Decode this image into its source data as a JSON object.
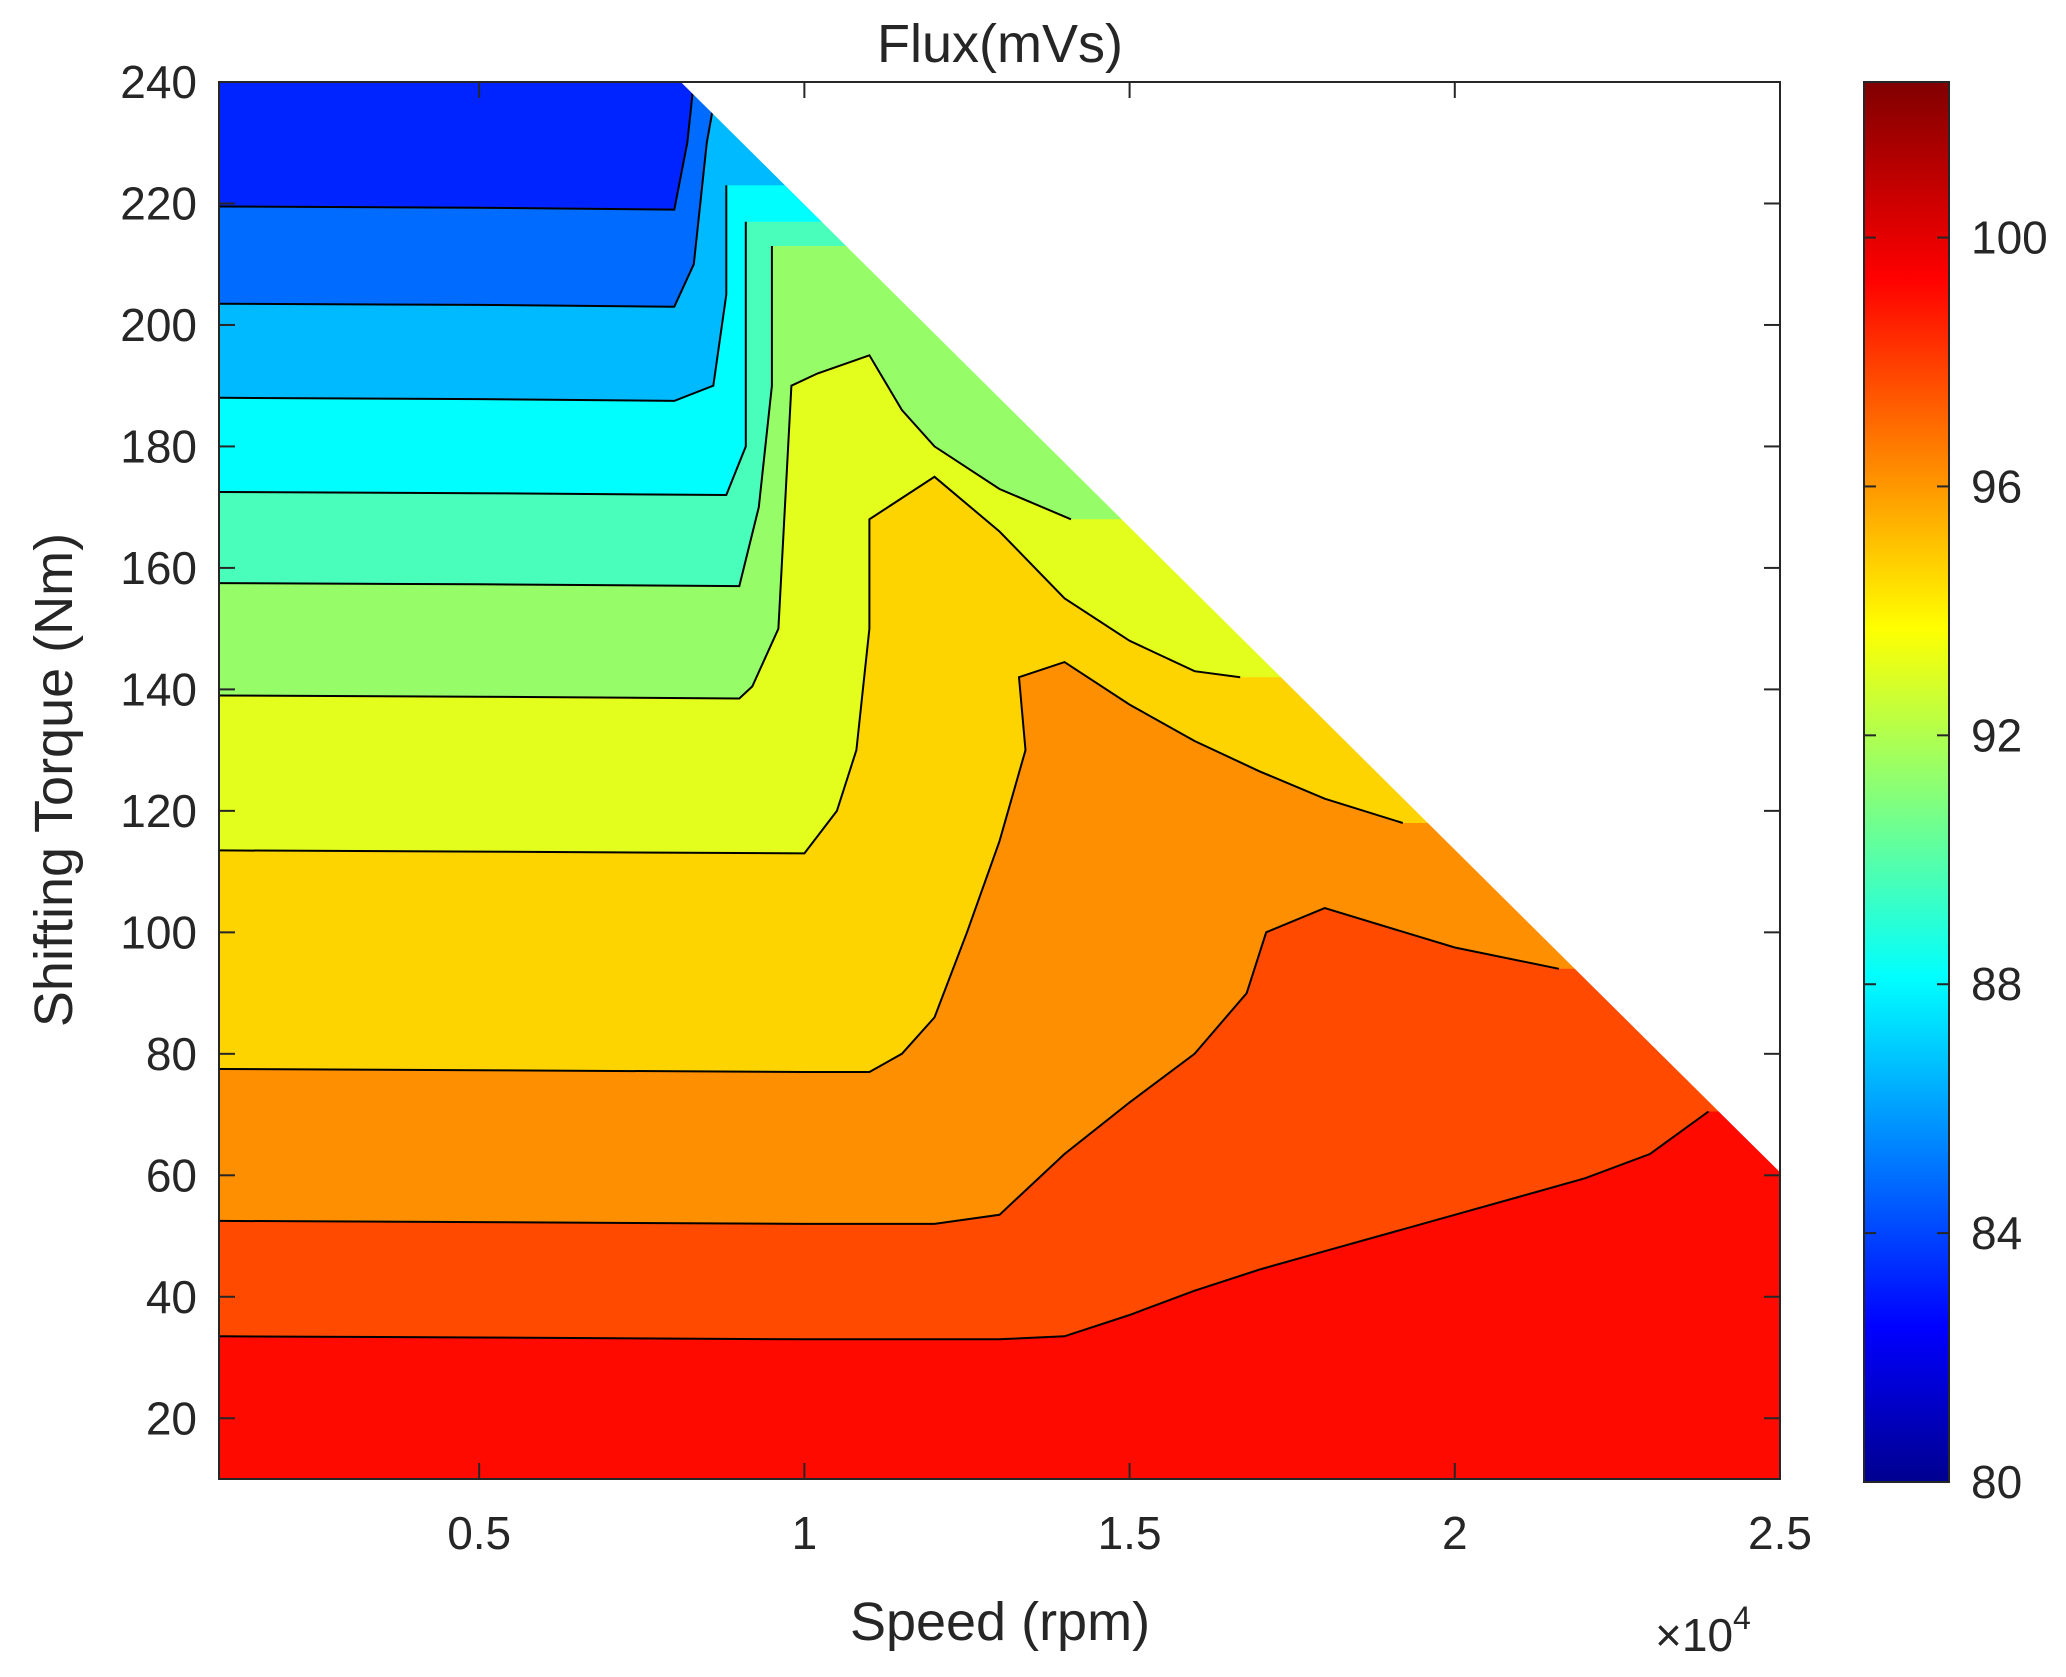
{
  "chart_data": {
    "type": "filled-contour",
    "title": "Flux(mVs)",
    "xlabel": "Speed (rpm)",
    "ylabel": "Shifting Torque (Nm)",
    "x_exponent_label": "×10",
    "x_exponent_power": "4",
    "xlim": [
      0.1,
      2.5
    ],
    "ylim": [
      10,
      240
    ],
    "xticks": [
      0.5,
      1,
      1.5,
      2,
      2.5
    ],
    "xtick_labels": [
      "0.5",
      "1",
      "1.5",
      "2",
      "2.5"
    ],
    "yticks": [
      20,
      40,
      60,
      80,
      100,
      120,
      140,
      160,
      180,
      200,
      220,
      240
    ],
    "ytick_labels": [
      "20",
      "40",
      "60",
      "80",
      "100",
      "120",
      "140",
      "160",
      "180",
      "200",
      "220",
      "240"
    ],
    "x_units_note": "speed in units of 10^4 rpm",
    "colormap": "jet",
    "clim": [
      80,
      102.5
    ],
    "colorbar_ticks": [
      80,
      84,
      88,
      92,
      96,
      100
    ],
    "colorbar_tick_labels": [
      "80",
      "84",
      "88",
      "92",
      "96",
      "100"
    ],
    "boundary_line": [
      [
        0.81,
        240
      ],
      [
        2.5,
        60.5
      ]
    ],
    "bands": [
      {
        "level": 100.5,
        "color": "#fe0a00"
      },
      {
        "level": 98.9,
        "color": "#ff4a00"
      },
      {
        "level": 97.3,
        "color": "#fe8f00"
      },
      {
        "level": 95.7,
        "color": "#fdd300"
      },
      {
        "level": 94.1,
        "color": "#e3fd1c"
      },
      {
        "level": 92.4,
        "color": "#96fd69"
      },
      {
        "level": 90.8,
        "color": "#49febb"
      },
      {
        "level": 89.2,
        "color": "#00fdff"
      },
      {
        "level": 87.6,
        "color": "#00baff"
      },
      {
        "level": 86.0,
        "color": "#006bff"
      },
      {
        "level": 84.5,
        "color": "#0024ff"
      }
    ],
    "contours": [
      [
        [
          0.1,
          33.5
        ],
        [
          0.5,
          33.3
        ],
        [
          1.0,
          33.0
        ],
        [
          1.3,
          33.0
        ],
        [
          1.4,
          33.5
        ],
        [
          1.5,
          37.0
        ],
        [
          1.6,
          41.0
        ],
        [
          1.7,
          44.5
        ],
        [
          1.8,
          47.5
        ],
        [
          1.9,
          50.5
        ],
        [
          2.0,
          53.5
        ],
        [
          2.1,
          56.5
        ],
        [
          2.2,
          59.5
        ],
        [
          2.3,
          63.5
        ],
        [
          2.39,
          70.5
        ]
      ],
      [
        [
          0.1,
          52.5
        ],
        [
          0.5,
          52.3
        ],
        [
          1.0,
          52.0
        ],
        [
          1.2,
          52.0
        ],
        [
          1.3,
          53.5
        ],
        [
          1.4,
          63.5
        ],
        [
          1.5,
          72.0
        ],
        [
          1.6,
          80.0
        ],
        [
          1.68,
          90.0
        ],
        [
          1.71,
          100.0
        ],
        [
          1.8,
          104.0
        ],
        [
          2.0,
          97.5
        ],
        [
          2.16,
          94.0
        ]
      ],
      [
        [
          0.1,
          77.5
        ],
        [
          0.5,
          77.3
        ],
        [
          1.0,
          77.0
        ],
        [
          1.1,
          77.0
        ],
        [
          1.15,
          80.0
        ],
        [
          1.2,
          86.0
        ],
        [
          1.25,
          100.0
        ],
        [
          1.3,
          115.0
        ],
        [
          1.34,
          130.0
        ],
        [
          1.33,
          142.0
        ],
        [
          1.4,
          144.5
        ],
        [
          1.5,
          137.5
        ],
        [
          1.6,
          131.5
        ],
        [
          1.7,
          126.5
        ],
        [
          1.8,
          122.0
        ],
        [
          1.92,
          118.0
        ]
      ],
      [
        [
          0.1,
          113.5
        ],
        [
          0.5,
          113.3
        ],
        [
          1.0,
          113.0
        ],
        [
          1.05,
          120.0
        ],
        [
          1.08,
          130.0
        ],
        [
          1.09,
          140.0
        ],
        [
          1.1,
          150.0
        ],
        [
          1.1,
          168.0
        ],
        [
          1.2,
          175.0
        ],
        [
          1.3,
          166.0
        ],
        [
          1.4,
          155.0
        ],
        [
          1.5,
          148.0
        ],
        [
          1.6,
          143.0
        ],
        [
          1.67,
          142.0
        ]
      ],
      [
        [
          0.1,
          139.0
        ],
        [
          0.5,
          138.8
        ],
        [
          0.9,
          138.5
        ],
        [
          0.92,
          140.5
        ],
        [
          0.96,
          150.0
        ],
        [
          0.97,
          170.0
        ],
        [
          0.98,
          190.0
        ],
        [
          1.02,
          192.0
        ],
        [
          1.1,
          195.0
        ],
        [
          1.15,
          186.0
        ],
        [
          1.2,
          180.0
        ],
        [
          1.3,
          173.0
        ],
        [
          1.41,
          168.0
        ]
      ],
      [
        [
          0.1,
          157.5
        ],
        [
          0.5,
          157.3
        ],
        [
          0.9,
          157.0
        ],
        [
          0.93,
          170.0
        ],
        [
          0.95,
          190.0
        ],
        [
          0.95,
          213.0
        ]
      ],
      [
        [
          0.1,
          172.5
        ],
        [
          0.5,
          172.3
        ],
        [
          0.88,
          172.0
        ],
        [
          0.91,
          180.0
        ],
        [
          0.91,
          200.0
        ],
        [
          0.91,
          217.0
        ]
      ],
      [
        [
          0.1,
          188.0
        ],
        [
          0.5,
          187.8
        ],
        [
          0.8,
          187.5
        ],
        [
          0.86,
          190.0
        ],
        [
          0.88,
          205.0
        ],
        [
          0.88,
          223.0
        ]
      ],
      [
        [
          0.1,
          203.5
        ],
        [
          0.5,
          203.3
        ],
        [
          0.8,
          203.0
        ],
        [
          0.83,
          210.0
        ],
        [
          0.85,
          230.0
        ],
        [
          0.86,
          236.0
        ]
      ],
      [
        [
          0.1,
          219.5
        ],
        [
          0.5,
          219.3
        ],
        [
          0.8,
          219.0
        ],
        [
          0.82,
          230.0
        ],
        [
          0.83,
          240.0
        ]
      ]
    ]
  }
}
